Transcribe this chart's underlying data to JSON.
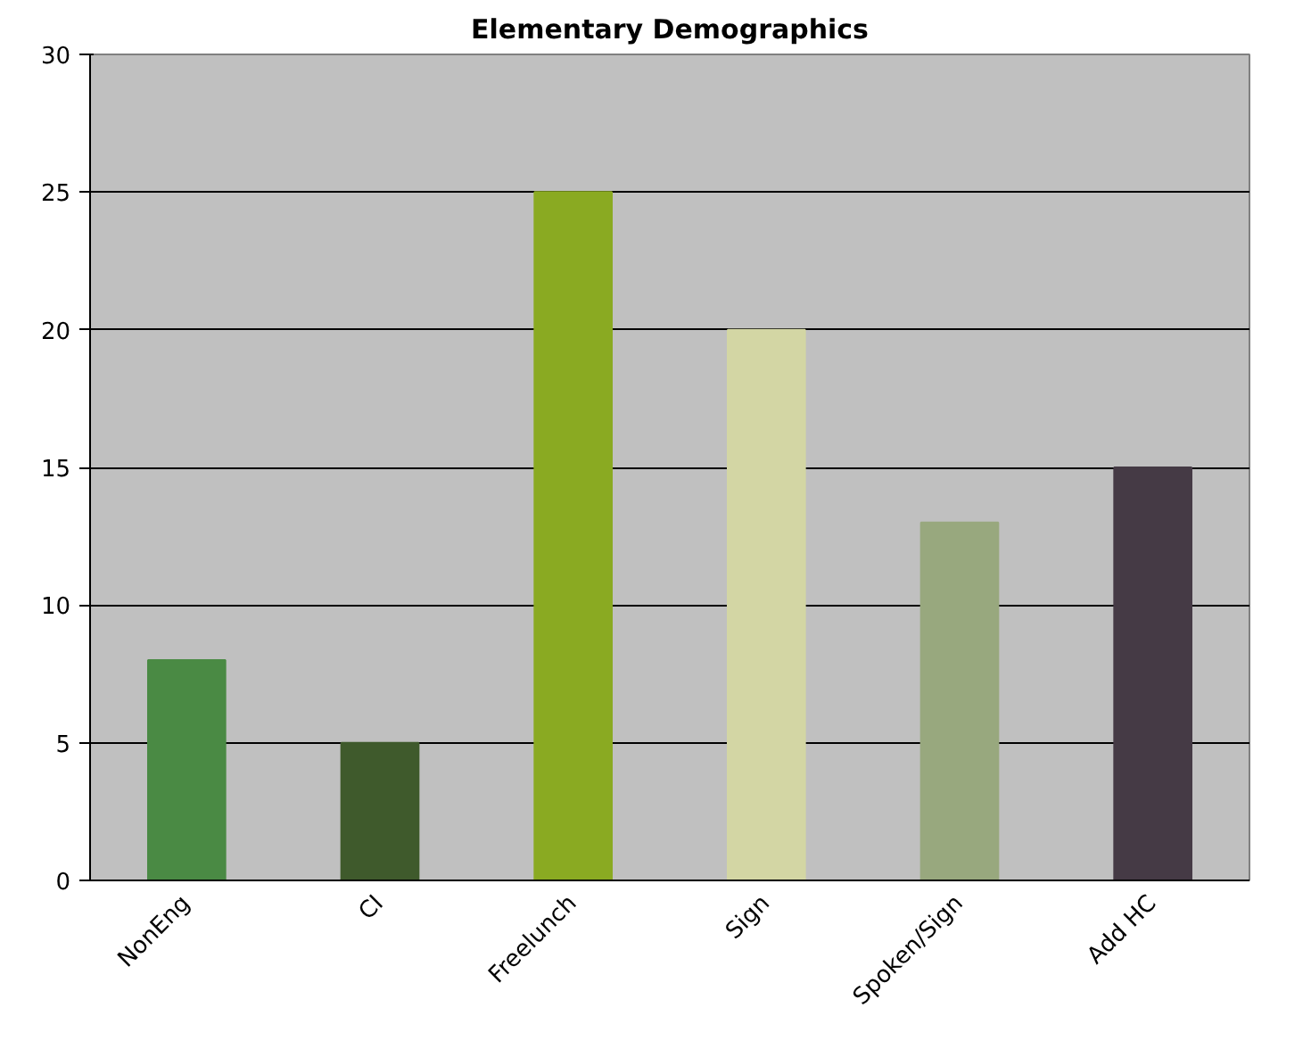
{
  "chart_data": {
    "type": "bar",
    "title": "Elementary Demographics",
    "categories": [
      "NonEng",
      "CI",
      "Freelunch",
      "Sign",
      "Spoken/Sign",
      "Add HC"
    ],
    "values": [
      8,
      5,
      25,
      20,
      13,
      15
    ],
    "colors": [
      "#4a8a44",
      "#3f5a2c",
      "#8aaa22",
      "#d3d6a4",
      "#98a87e",
      "#453a45"
    ],
    "ylim": [
      0,
      30
    ],
    "yticks": [
      0,
      5,
      10,
      15,
      20,
      25,
      30
    ],
    "grid": "y"
  }
}
